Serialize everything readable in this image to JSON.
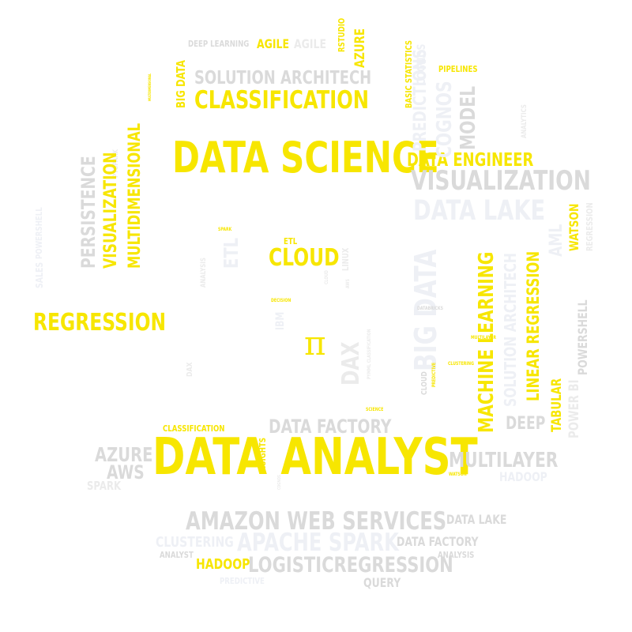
{
  "words": {
    "data_science": "DATA SCIENCE",
    "data_analyst": "DATA ANALYST",
    "classification_top": "CLASSIFICATION",
    "classification_small": "CLASSIFICATION",
    "solution_architech": "SOLUTION ARCHITECH",
    "solution_architech_v": "SOLUTION ARCHITECH",
    "regression": "REGRESSION",
    "regression_v": "REGRESSION",
    "cloud": "CLOUD",
    "cloud_v": "CLOUD",
    "etl": "ETL",
    "etl_v": "ETL",
    "deep_learning": "DEEP LEARNING",
    "agile_y": "AGILE",
    "agile_g": "AGILE",
    "rstudio": "RSTUDIO",
    "azure_v": "AZURE",
    "azure": "AZURE",
    "basic_statistics": "BASIC STATISTICS",
    "pipelines": "PIPELINES",
    "big_data_small": "BIG DATA",
    "big_data_big": "BIG DATA",
    "multidimensional_small": "MULTIDIMENSIONAL",
    "multidimensional": "MULTIDIMENSIONAL",
    "visualization_v": "VISUALIZATION",
    "visualization": "VISUALIZATION",
    "persistence": "PERSISTENCE",
    "pyspark": "PYSPARK",
    "predictions": "PREDICTIONS",
    "cognos": "COGNOS",
    "model": "MODEL",
    "analytics": "ANALYTICS",
    "data_engineer": "DATA ENGINEER",
    "data_lake_big": "DATA LAKE",
    "data_lake": "DATA LAKE",
    "machine_learning": "MACHINE LEARNING",
    "linear_regression": "LINEAR REGRESSION",
    "aml": "AML",
    "watson_v": "WATSON",
    "watson": "WATSON",
    "tabular": "TABULAR",
    "power_bi": "POWER BI",
    "powershell_v": "POWERSHELL",
    "powershell": "POWERSHELL",
    "sales": "SALES",
    "deep": "DEEP",
    "analysis_v": "ANALYSIS",
    "analysis": "ANALYSIS",
    "linux": "LINUX",
    "aws_v": "AWS",
    "aws": "AWS",
    "ibm": "IBM",
    "dax_v": "DAX",
    "dax_small": "DAX",
    "pymml": "PYMML CLASSIFICATION",
    "spark_tiny": "SPARK",
    "spark": "SPARK",
    "decision": "DECISION",
    "databricks": "DATABRICKS",
    "multilayer_tiny": "MULTILAYER",
    "multilayer": "MULTILAYER",
    "clustering_tiny": "CLUSTERING",
    "clustering": "CLUSTERING",
    "predictive_v": "PREDICTIVE",
    "predictive": "PREDICTIVE",
    "science": "SCIENCE",
    "insights": "INSIGHTS",
    "data_factory": "DATA FACTORY",
    "data_factory2": "DATA FACTORY",
    "hadoop_g": "HADOOP",
    "hadoop_y": "HADOOP",
    "amazon_web_services": "AMAZON WEB SERVICES",
    "apache_spark": "APACHE SPARK",
    "analyst": "ANALYST",
    "logistic_regression": "LOGISTICREGRESSION",
    "query": "QUERY",
    "cognos_small": "COGNOS",
    "pi": "π"
  },
  "colors": {
    "accent_yellow": "#f7e600",
    "gray": "#dadada",
    "light_gray": "#ebebeb",
    "pale_blue": "#eef0f5"
  }
}
